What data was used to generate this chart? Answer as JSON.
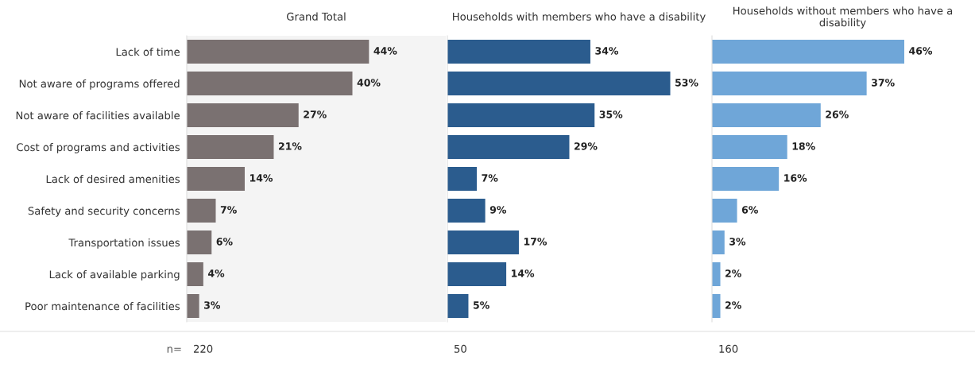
{
  "chart_data": [
    {
      "type": "bar",
      "orientation": "horizontal",
      "title": "Grand Total",
      "categories": [
        "Lack of time",
        "Not aware of programs offered",
        "Not aware of facilities available",
        "Cost of programs and activities",
        "Lack of desired amenities",
        "Safety and security concerns",
        "Transportation issues",
        "Lack of available parking",
        "Poor maintenance of facilities"
      ],
      "values": [
        44,
        40,
        27,
        21,
        14,
        7,
        6,
        4,
        3
      ],
      "color": "#7a7171",
      "value_labels": [
        "44%",
        "40%",
        "27%",
        "21%",
        "14%",
        "7%",
        "6%",
        "4%",
        "3%"
      ],
      "tick_labels": "y",
      "grid": false,
      "annotations": [
        "n=",
        "220"
      ]
    },
    {
      "type": "bar",
      "orientation": "horizontal",
      "title": "Households with members who have a disability",
      "values": [
        34,
        53,
        35,
        29,
        7,
        9,
        17,
        14,
        5
      ],
      "color": "#2b5c8e",
      "value_labels": [
        "34%",
        "53%",
        "35%",
        "29%",
        "7%",
        "9%",
        "17%",
        "14%",
        "5%"
      ],
      "tick_labels": false,
      "grid": false,
      "annotations": [
        "50"
      ]
    },
    {
      "type": "bar",
      "orientation": "horizontal",
      "title": "Households without members who have a disability",
      "values": [
        46,
        37,
        26,
        18,
        16,
        6,
        3,
        2,
        2
      ],
      "color": "#6fa6d8",
      "value_labels": [
        "46%",
        "37%",
        "26%",
        "18%",
        "16%",
        "6%",
        "3%",
        "2%",
        "2%"
      ],
      "tick_labels": false,
      "grid": false,
      "annotations": [
        "160"
      ]
    }
  ]
}
